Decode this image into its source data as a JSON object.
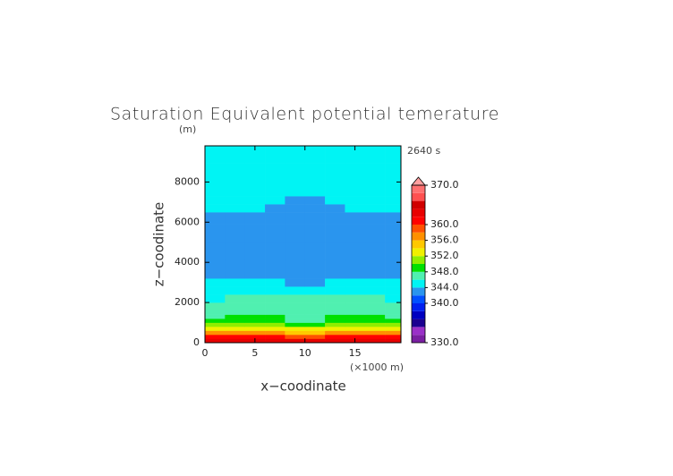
{
  "chart_data": {
    "type": "contour",
    "title": "Saturation Equivalent potential temerature",
    "y_unit": "(m)",
    "x_unit": "(×1000 m)",
    "time_label": "2640 s",
    "x_label": "x−coodinate",
    "y_label": "z−coodinate",
    "xlim": [
      0,
      19.6
    ],
    "ylim": [
      0,
      9800
    ],
    "xticks": [
      0,
      5,
      10,
      15
    ],
    "yticks": [
      0,
      2000,
      4000,
      6000,
      8000
    ],
    "x": [
      1,
      3,
      5,
      7,
      9,
      11,
      13,
      15,
      17,
      19
    ],
    "y": [
      100,
      300,
      500,
      700,
      900,
      1100,
      1300,
      1500,
      1800,
      2200,
      2600,
      3000,
      3400,
      3800,
      4500,
      5500,
      6300,
      6700,
      7100,
      7500,
      8500,
      9400
    ],
    "z": [
      [
        363,
        363,
        363,
        363,
        363,
        363,
        363,
        363,
        363,
        363
      ],
      [
        360.5,
        360.5,
        360.5,
        360,
        359.5,
        359.5,
        360,
        360.5,
        360.5,
        360.5
      ],
      [
        357,
        357,
        357,
        356.5,
        355.5,
        355.5,
        356.5,
        357,
        357,
        357
      ],
      [
        353.5,
        353.5,
        353.5,
        353,
        352,
        352,
        353,
        353.5,
        353.5,
        353.5
      ],
      [
        350,
        350.5,
        350.5,
        350,
        349,
        349,
        350,
        350.5,
        350.5,
        350
      ],
      [
        348.5,
        349,
        349,
        348.5,
        347.5,
        347.5,
        348.5,
        349,
        349,
        348.5
      ],
      [
        347.5,
        348.5,
        348.5,
        348.5,
        347.5,
        347.5,
        348.5,
        348.5,
        348.5,
        347.5
      ],
      [
        347,
        347.5,
        347.5,
        347,
        346.5,
        346.5,
        347,
        347.5,
        347.5,
        347
      ],
      [
        346.5,
        347,
        347,
        347,
        346.5,
        346.5,
        347,
        347,
        347,
        346.5
      ],
      [
        345.5,
        346,
        346,
        346,
        346,
        346,
        346,
        346,
        346,
        345.5
      ],
      [
        345,
        345,
        345,
        345,
        345,
        345,
        345,
        345,
        345,
        345
      ],
      [
        344.5,
        344.5,
        344.5,
        344,
        343.5,
        343.5,
        344,
        344.5,
        344.5,
        344.5
      ],
      [
        343.5,
        343.5,
        343.5,
        343.5,
        343,
        343,
        343.5,
        343.5,
        343.5,
        343.5
      ],
      [
        343,
        343,
        343,
        343,
        343,
        343,
        343,
        343,
        343,
        343
      ],
      [
        343,
        343,
        343,
        343,
        343,
        343,
        343,
        343,
        343,
        343
      ],
      [
        343,
        343,
        343,
        343,
        343,
        343,
        343,
        343,
        343,
        343
      ],
      [
        343,
        343,
        343,
        343,
        343,
        343,
        343,
        343,
        343,
        343
      ],
      [
        344.5,
        344.5,
        344.5,
        343.5,
        343,
        343,
        343.5,
        344.5,
        344.5,
        344.5
      ],
      [
        345,
        345,
        345,
        344.5,
        343.5,
        343.5,
        344.5,
        345,
        345,
        345
      ],
      [
        345,
        345,
        345,
        345,
        345,
        345,
        345,
        345,
        345,
        345
      ],
      [
        345,
        345,
        345,
        345,
        345,
        345,
        345,
        345,
        345,
        345
      ],
      [
        345,
        345,
        345,
        345,
        345,
        345,
        345,
        345,
        345,
        345
      ]
    ],
    "levels": [
      330,
      332,
      334,
      336,
      338,
      340,
      342,
      344,
      346,
      348,
      350,
      352,
      354,
      356,
      358,
      360,
      362,
      364,
      366,
      368,
      370
    ],
    "colors": [
      "#7a1fa2",
      "#9a30c8",
      "#1a0090",
      "#0000c0",
      "#0020f0",
      "#0050ff",
      "#2a95ee",
      "#00f4f4",
      "#50f0b0",
      "#00e000",
      "#90ee00",
      "#f0f000",
      "#ffc800",
      "#ff9000",
      "#ff5000",
      "#ff0000",
      "#e80000",
      "#d00000",
      "#ff5050",
      "#ff7070"
    ],
    "over_color": "#ffa0a0",
    "colorbar_ticks": [
      {
        "value": 370,
        "label": "370.0"
      },
      {
        "value": 360,
        "label": "360.0"
      },
      {
        "value": 356,
        "label": "356.0"
      },
      {
        "value": 352,
        "label": "352.0"
      },
      {
        "value": 348,
        "label": "348.0"
      },
      {
        "value": 344,
        "label": "344.0"
      },
      {
        "value": 340,
        "label": "340.0"
      },
      {
        "value": 330,
        "label": "330.0"
      }
    ]
  }
}
